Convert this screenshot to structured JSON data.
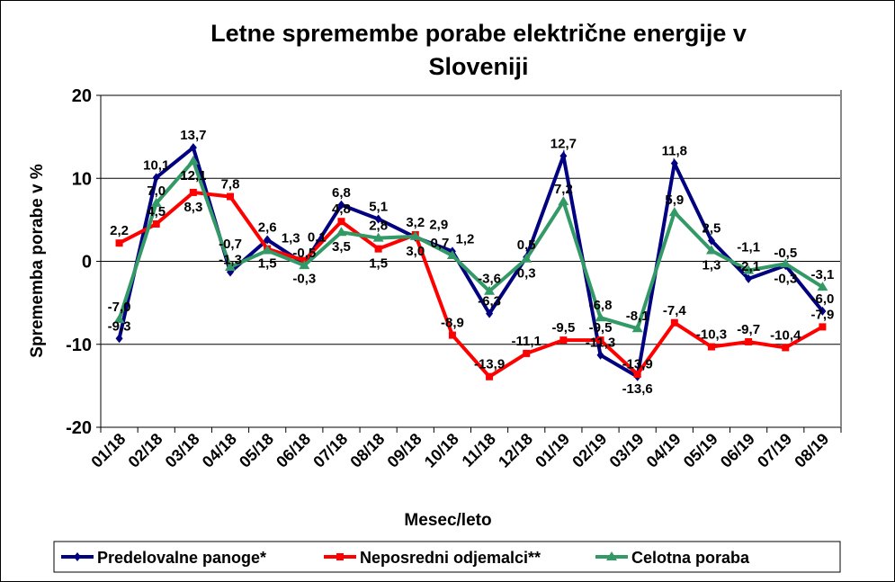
{
  "chart_data": {
    "type": "line",
    "title": "Letne spremembe porabe električne energije v Slovenjiji",
    "title_lines": [
      "Letne spremembe porabe električne energije v",
      "Sloveniji"
    ],
    "xlabel": "Mesec/leto",
    "ylabel": "Sprememba porabe v %",
    "ylim": [
      -20,
      20
    ],
    "yticks": [
      20,
      10,
      0,
      -10,
      -20
    ],
    "grid": "horizontal",
    "legend_position": "bottom",
    "categories": [
      "01/18",
      "02/18",
      "03/18",
      "04/18",
      "05/18",
      "06/18",
      "07/18",
      "08/18",
      "09/18",
      "10/18",
      "11/18",
      "12/18",
      "01/19",
      "02/19",
      "03/19",
      "04/19",
      "05/19",
      "06/19",
      "07/19",
      "08/19"
    ],
    "series": [
      {
        "name": "Predelovalne panoge*",
        "color": "#000080",
        "marker": "diamond",
        "values": [
          -9.3,
          10.1,
          13.7,
          -1.3,
          2.6,
          -0.3,
          6.8,
          5.1,
          2.9,
          1.2,
          -6.3,
          0.5,
          12.7,
          -11.3,
          -13.9,
          11.8,
          2.5,
          -2.1,
          -0.5,
          -6.0
        ]
      },
      {
        "name": "Neposredni odjemalci**",
        "color": "#ff0000",
        "marker": "square",
        "values": [
          2.2,
          4.5,
          8.3,
          7.8,
          1.5,
          0.1,
          4.8,
          1.5,
          3.2,
          -8.9,
          -13.9,
          -11.1,
          -9.5,
          -9.5,
          -13.6,
          -7.4,
          -10.3,
          -9.7,
          -10.4,
          -7.9
        ]
      },
      {
        "name": "Celotna poraba",
        "color": "#339966",
        "marker": "triangle",
        "values": [
          -7.0,
          7.0,
          12.1,
          -0.7,
          1.3,
          -0.5,
          3.5,
          2.8,
          3.0,
          0.7,
          -3.6,
          0.3,
          7.2,
          -6.8,
          -8.1,
          5.9,
          1.3,
          -1.1,
          -0.3,
          -3.1
        ]
      }
    ]
  }
}
